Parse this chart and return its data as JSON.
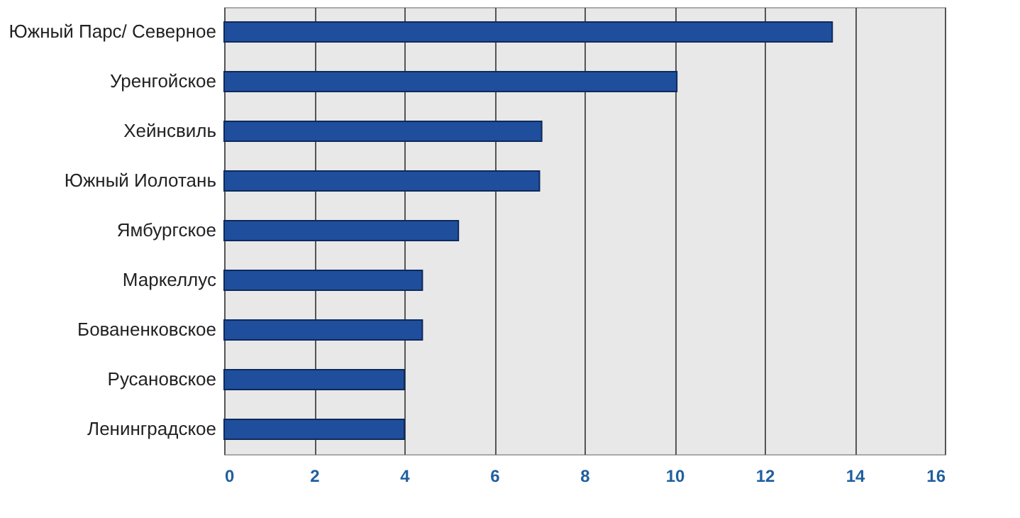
{
  "chart_data": {
    "type": "bar",
    "orientation": "horizontal",
    "categories": [
      "Южный Парс/ Северное",
      "Уренгойское",
      "Хейнсвиль",
      "Южный Иолотань",
      "Ямбургское",
      "Маркеллус",
      "Бованенковское",
      "Русановское",
      "Ленинградское"
    ],
    "values": [
      13.5,
      10.05,
      7.05,
      7.0,
      5.2,
      4.4,
      4.4,
      4.0,
      4.0
    ],
    "color": "#1f4e9c",
    "xlim": [
      0,
      16
    ],
    "xticks": [
      0,
      2,
      4,
      6,
      8,
      10,
      12,
      14,
      16
    ],
    "grid": "x"
  }
}
